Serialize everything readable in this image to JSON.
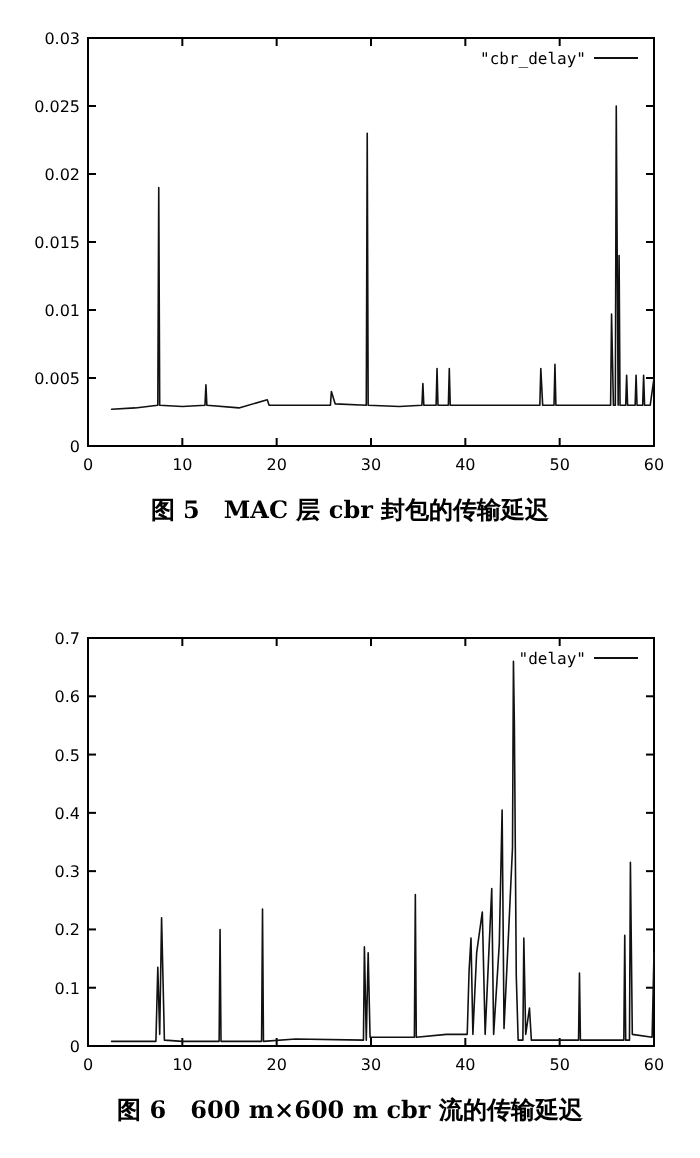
{
  "chart_data": [
    {
      "type": "line",
      "title": "图 5　MAC 层 cbr 封包的传输延迟",
      "legend": "top right",
      "grid": false,
      "line_style": "solid",
      "xlim": [
        0,
        60
      ],
      "ylim": [
        0,
        0.03
      ],
      "xticks": [
        0,
        10,
        20,
        30,
        40,
        50,
        60
      ],
      "yticks": [
        0,
        0.005,
        0.01,
        0.015,
        0.02,
        0.025,
        0.03
      ],
      "series": [
        {
          "name": "\"cbr_delay\"",
          "color": "#111111",
          "x": [
            2.5,
            5,
            7.4,
            7.5,
            7.6,
            10,
            12.4,
            12.5,
            12.6,
            16,
            19,
            19.2,
            25.7,
            25.8,
            26.2,
            29.5,
            29.6,
            29.7,
            33,
            35.4,
            35.5,
            35.6,
            36.9,
            37,
            37.1,
            38.2,
            38.3,
            38.4,
            44,
            47.9,
            48,
            48.2,
            49.4,
            49.5,
            49.6,
            54,
            55.4,
            55.5,
            55.7,
            55.9,
            56,
            56.2,
            56.3,
            56.4,
            57,
            57.1,
            57.2,
            58,
            58.1,
            58.2,
            58.8,
            58.9,
            59,
            59.6,
            60
          ],
          "values": [
            0.0027,
            0.0028,
            0.003,
            0.019,
            0.003,
            0.0029,
            0.003,
            0.0045,
            0.003,
            0.0028,
            0.0034,
            0.003,
            0.003,
            0.004,
            0.0031,
            0.003,
            0.023,
            0.003,
            0.0029,
            0.003,
            0.0046,
            0.003,
            0.003,
            0.0057,
            0.003,
            0.003,
            0.0057,
            0.003,
            0.003,
            0.003,
            0.0057,
            0.003,
            0.003,
            0.006,
            0.003,
            0.003,
            0.003,
            0.0097,
            0.003,
            0.003,
            0.025,
            0.003,
            0.014,
            0.003,
            0.003,
            0.0052,
            0.003,
            0.003,
            0.0052,
            0.003,
            0.003,
            0.0052,
            0.003,
            0.003,
            0.005
          ]
        }
      ]
    },
    {
      "type": "line",
      "title": "图 6　600 m×600 m cbr 流的传输延迟",
      "legend": "top right",
      "grid": false,
      "line_style": "solid",
      "xlim": [
        0,
        60
      ],
      "ylim": [
        0,
        0.7
      ],
      "xticks": [
        0,
        10,
        20,
        30,
        40,
        50,
        60
      ],
      "yticks": [
        0,
        0.1,
        0.2,
        0.3,
        0.4,
        0.5,
        0.6,
        0.7
      ],
      "series": [
        {
          "name": "\"delay\"",
          "color": "#111111",
          "x": [
            2.5,
            7.2,
            7.4,
            7.6,
            7.8,
            8.1,
            10,
            13.9,
            14,
            14.1,
            18.4,
            18.5,
            18.6,
            22,
            29.2,
            29.3,
            29.5,
            29.7,
            29.9,
            32,
            34.6,
            34.7,
            34.8,
            38,
            40.2,
            40.4,
            40.6,
            40.8,
            41.2,
            41.8,
            42.1,
            42.8,
            43,
            43.6,
            43.9,
            44.1,
            44.6,
            45,
            45.1,
            45.2,
            45.4,
            45.6,
            46.1,
            46.2,
            46.4,
            46.8,
            47,
            52,
            52.1,
            52.2,
            56.8,
            56.9,
            57,
            57.4,
            57.5,
            57.7,
            59.8,
            60
          ],
          "values": [
            0.008,
            0.008,
            0.135,
            0.02,
            0.22,
            0.01,
            0.008,
            0.008,
            0.2,
            0.008,
            0.008,
            0.235,
            0.008,
            0.012,
            0.01,
            0.17,
            0.01,
            0.16,
            0.015,
            0.015,
            0.015,
            0.26,
            0.015,
            0.02,
            0.02,
            0.13,
            0.185,
            0.02,
            0.16,
            0.23,
            0.02,
            0.27,
            0.02,
            0.175,
            0.405,
            0.03,
            0.2,
            0.34,
            0.66,
            0.55,
            0.12,
            0.01,
            0.01,
            0.185,
            0.02,
            0.065,
            0.01,
            0.01,
            0.125,
            0.01,
            0.01,
            0.19,
            0.01,
            0.01,
            0.315,
            0.02,
            0.015,
            0.16
          ]
        }
      ]
    }
  ]
}
